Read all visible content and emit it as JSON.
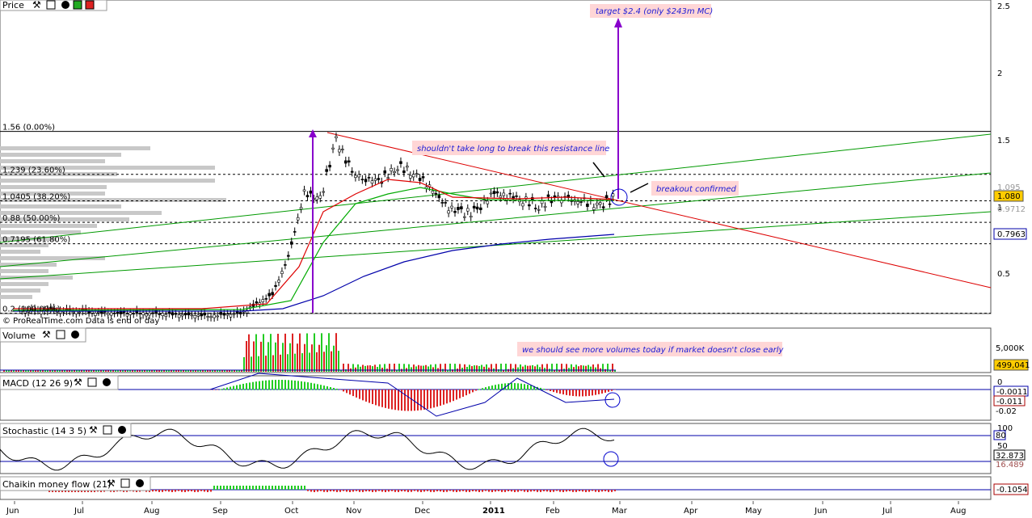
{
  "panels": {
    "price": {
      "title": "Price"
    },
    "volume": {
      "title": "Volume"
    },
    "macd": {
      "title": "MACD (12 26 9)"
    },
    "stochastic": {
      "title": "Stochastic (14 3 5)"
    },
    "chaikin": {
      "title": "Chaikin money flow (21)"
    }
  },
  "watermark": "© ProRealTime.com  Data is end of day",
  "fib_labels": [
    {
      "text": "1.56 (0.00%)",
      "value": 1.56
    },
    {
      "text": "1.239 (23.60%)",
      "value": 1.239
    },
    {
      "text": "1.0405 (38.20%)",
      "value": 1.0405
    },
    {
      "text": "0.88 (50.00%)",
      "value": 0.88
    },
    {
      "text": "0.7195 (61.80%)",
      "value": 0.7195
    },
    {
      "text": "0.2 (100.00%)",
      "value": 0.2
    }
  ],
  "annotations": {
    "target": "target $2.4 (only $243m MC)",
    "resistance": "shouldn't take long to break this resistance line",
    "breakout": "breakout confirmed",
    "volumes": "we should see more volumes today if market doesn't close early"
  },
  "axes": {
    "price_ticks": [
      "2.5",
      "2",
      "1.5",
      "1",
      "0.5"
    ],
    "volume_tick": "5,000K",
    "macd_ticks": [
      "0",
      "-0.02"
    ],
    "stoch_ticks": [
      "100",
      "50",
      "0"
    ],
    "months": [
      "Jun",
      "Jul",
      "Aug",
      "Sep",
      "Oct",
      "Nov",
      "Dec",
      "2011",
      "Feb",
      "Mar",
      "Apr",
      "May",
      "Jun",
      "Jul",
      "Aug"
    ]
  },
  "last_values": {
    "price_last": "1.080",
    "price_high": "1.095",
    "price_low": "0.9712",
    "ma_blue": "0.7963",
    "volume": "499,041",
    "macd_a": "-0.0011",
    "macd_b": "-0.011",
    "stoch_80": "80",
    "stoch_k": "32.873",
    "stoch_d": "16.489",
    "chaikin": "-0.1054"
  },
  "colors": {
    "resistance_line": "#dd0000",
    "channel_lines": "#009900",
    "ma_long": "#0000aa",
    "target_arrow": "#8800cc",
    "note_bg": "#ffd6d6",
    "note_text": "#1a1ad6"
  },
  "chart_data": {
    "type": "candlestick",
    "ylim": [
      0.1,
      2.55
    ],
    "x_range": [
      "2010-06",
      "2011-08"
    ],
    "weekly_close": [
      [
        "2010-06-05",
        0.22
      ],
      [
        "2010-06-19",
        0.22
      ],
      [
        "2010-07-03",
        0.21
      ],
      [
        "2010-07-17",
        0.2
      ],
      [
        "2010-07-31",
        0.2
      ],
      [
        "2010-08-14",
        0.19
      ],
      [
        "2010-08-28",
        0.18
      ],
      [
        "2010-09-11",
        0.2
      ],
      [
        "2010-09-25",
        0.34
      ],
      [
        "2010-10-02",
        0.62
      ],
      [
        "2010-10-09",
        1.1
      ],
      [
        "2010-10-16",
        1.05
      ],
      [
        "2010-10-23",
        1.5
      ],
      [
        "2010-10-30",
        1.25
      ],
      [
        "2010-11-06",
        1.2
      ],
      [
        "2010-11-13",
        1.2
      ],
      [
        "2010-11-20",
        1.3
      ],
      [
        "2010-11-27",
        1.25
      ],
      [
        "2010-12-04",
        1.15
      ],
      [
        "2010-12-11",
        1.0
      ],
      [
        "2010-12-18",
        0.95
      ],
      [
        "2010-12-25",
        0.96
      ],
      [
        "2011-01-01",
        1.1
      ],
      [
        "2011-01-08",
        1.08
      ],
      [
        "2011-01-15",
        1.05
      ],
      [
        "2011-01-22",
        1.0
      ],
      [
        "2011-01-29",
        1.07
      ],
      [
        "2011-02-05",
        1.05
      ],
      [
        "2011-02-12",
        1.03
      ],
      [
        "2011-02-19",
        1.0
      ],
      [
        "2011-02-26",
        1.08
      ]
    ],
    "target": 2.4,
    "resistance_line": {
      "from": [
        "2010-10-22",
        1.55
      ],
      "to": [
        "2011-08-31",
        0.4
      ]
    },
    "ma_long": {
      "from": [
        "2010-09-25",
        0.2
      ],
      "to": [
        "2011-02-28",
        0.8
      ]
    }
  }
}
